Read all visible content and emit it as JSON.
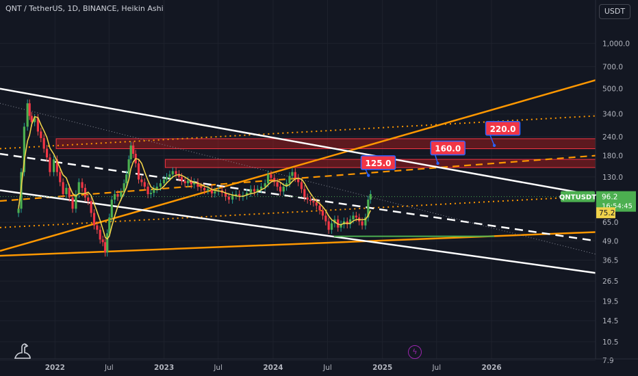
{
  "header": {
    "title": "QNT / TetherUS, 1D, BINANCE, Heikin Ashi",
    "currency": "USDT"
  },
  "colors": {
    "background": "#131722",
    "orange": "#ff9800",
    "white": "#ffffff",
    "red_zone": "#b71c1c",
    "green": "#4caf50",
    "yellow_ma": "#f0d24a",
    "label_red": "#f23645",
    "label_border": "#2962ff"
  },
  "icons": {
    "logo": "tradingview-dinosaur-icon",
    "bolt": "lightning-icon"
  },
  "chart_data": {
    "type": "candlestick",
    "symbol": "QNTUSDT",
    "price_scale": "log",
    "y_ticks": [
      "1,000.0",
      "700.0",
      "500.0",
      "340.0",
      "240.0",
      "180.0",
      "130.0",
      "96.2",
      "65.0",
      "49.0",
      "36.5",
      "26.5",
      "19.5",
      "14.5",
      "10.5",
      "7.9"
    ],
    "x_ticks": [
      "2022",
      "Jul",
      "2023",
      "Jul",
      "2024",
      "Jul",
      "2025",
      "Jul",
      "2026"
    ],
    "last_price": {
      "symbol": "QNTUSDT",
      "value": "96.2",
      "countdown": "16:54:45"
    },
    "ma_marker": "75.2",
    "targets": [
      "125.0",
      "160.0",
      "220.0"
    ],
    "ylim": [
      7.9,
      1400
    ]
  },
  "candles_series": [
    [
      "2021-09-01",
      75,
      80
    ],
    [
      "2021-09-10",
      80,
      140
    ],
    [
      "2021-09-20",
      140,
      280
    ],
    [
      "2021-10-01",
      280,
      400
    ],
    [
      "2021-10-08",
      400,
      330
    ],
    [
      "2021-10-15",
      330,
      300
    ],
    [
      "2021-10-25",
      300,
      320
    ],
    [
      "2021-11-05",
      320,
      260
    ],
    [
      "2021-11-15",
      260,
      235
    ],
    [
      "2021-11-25",
      235,
      200
    ],
    [
      "2021-12-05",
      200,
      175
    ],
    [
      "2021-12-15",
      175,
      140
    ],
    [
      "2021-12-28",
      140,
      170
    ],
    [
      "2022-01-08",
      170,
      140
    ],
    [
      "2022-01-18",
      140,
      120
    ],
    [
      "2022-01-28",
      120,
      100
    ],
    [
      "2022-02-08",
      100,
      110
    ],
    [
      "2022-02-18",
      110,
      95
    ],
    [
      "2022-03-01",
      95,
      80
    ],
    [
      "2022-03-12",
      80,
      100
    ],
    [
      "2022-03-22",
      100,
      120
    ],
    [
      "2022-04-02",
      120,
      110
    ],
    [
      "2022-04-12",
      110,
      95
    ],
    [
      "2022-04-22",
      95,
      90
    ],
    [
      "2022-05-02",
      90,
      75
    ],
    [
      "2022-05-12",
      75,
      62
    ],
    [
      "2022-05-22",
      62,
      58
    ],
    [
      "2022-06-01",
      58,
      50
    ],
    [
      "2022-06-10",
      50,
      48
    ],
    [
      "2022-06-18",
      48,
      41
    ],
    [
      "2022-06-25",
      41,
      55
    ],
    [
      "2022-07-02",
      55,
      70
    ],
    [
      "2022-07-10",
      70,
      92
    ],
    [
      "2022-07-20",
      92,
      100
    ],
    [
      "2022-07-30",
      100,
      96
    ],
    [
      "2022-08-10",
      96,
      103
    ],
    [
      "2022-08-20",
      103,
      118
    ],
    [
      "2022-08-28",
      118,
      135
    ],
    [
      "2022-09-05",
      135,
      170
    ],
    [
      "2022-09-12",
      170,
      210
    ],
    [
      "2022-09-20",
      210,
      185
    ],
    [
      "2022-09-28",
      185,
      160
    ],
    [
      "2022-10-08",
      160,
      125
    ],
    [
      "2022-10-18",
      125,
      120
    ],
    [
      "2022-10-28",
      120,
      112
    ],
    [
      "2022-11-08",
      112,
      100
    ],
    [
      "2022-11-18",
      100,
      102
    ],
    [
      "2022-11-28",
      102,
      108
    ],
    [
      "2022-12-08",
      108,
      112
    ],
    [
      "2022-12-20",
      112,
      118
    ],
    [
      "2023-01-01",
      118,
      125
    ],
    [
      "2023-01-10",
      125,
      130
    ],
    [
      "2023-01-20",
      130,
      135
    ],
    [
      "2023-01-30",
      135,
      142
    ],
    [
      "2023-02-10",
      142,
      136
    ],
    [
      "2023-02-20",
      136,
      130
    ],
    [
      "2023-03-01",
      130,
      122
    ],
    [
      "2023-03-12",
      122,
      118
    ],
    [
      "2023-03-22",
      118,
      123
    ],
    [
      "2023-04-02",
      123,
      116
    ],
    [
      "2023-04-12",
      116,
      120
    ],
    [
      "2023-04-24",
      120,
      112
    ],
    [
      "2023-05-05",
      112,
      110
    ],
    [
      "2023-05-16",
      110,
      106
    ],
    [
      "2023-05-28",
      106,
      108
    ],
    [
      "2023-06-10",
      108,
      101
    ],
    [
      "2023-06-20",
      101,
      104
    ],
    [
      "2023-07-02",
      104,
      106
    ],
    [
      "2023-07-14",
      106,
      102
    ],
    [
      "2023-07-26",
      102,
      96
    ],
    [
      "2023-08-06",
      96,
      92
    ],
    [
      "2023-08-18",
      92,
      98
    ],
    [
      "2023-08-30",
      98,
      100
    ],
    [
      "2023-09-10",
      100,
      96
    ],
    [
      "2023-09-22",
      96,
      98
    ],
    [
      "2023-10-05",
      98,
      102
    ],
    [
      "2023-10-18",
      102,
      108
    ],
    [
      "2023-10-30",
      108,
      104
    ],
    [
      "2023-11-10",
      104,
      108
    ],
    [
      "2023-11-22",
      108,
      112
    ],
    [
      "2023-12-05",
      112,
      118
    ],
    [
      "2023-12-15",
      118,
      135
    ],
    [
      "2023-12-25",
      135,
      128
    ],
    [
      "2024-01-05",
      128,
      120
    ],
    [
      "2024-01-15",
      120,
      112
    ],
    [
      "2024-01-25",
      112,
      104
    ],
    [
      "2024-02-05",
      104,
      112
    ],
    [
      "2024-02-15",
      112,
      118
    ],
    [
      "2024-02-25",
      118,
      132
    ],
    [
      "2024-03-05",
      132,
      140
    ],
    [
      "2024-03-15",
      140,
      128
    ],
    [
      "2024-03-25",
      128,
      120
    ],
    [
      "2024-04-05",
      120,
      108
    ],
    [
      "2024-04-15",
      108,
      95
    ],
    [
      "2024-04-25",
      95,
      92
    ],
    [
      "2024-05-05",
      92,
      90
    ],
    [
      "2024-05-15",
      90,
      88
    ],
    [
      "2024-05-25",
      88,
      84
    ],
    [
      "2024-06-05",
      84,
      78
    ],
    [
      "2024-06-15",
      78,
      72
    ],
    [
      "2024-06-25",
      72,
      66
    ],
    [
      "2024-07-05",
      66,
      58
    ],
    [
      "2024-07-15",
      58,
      64
    ],
    [
      "2024-07-25",
      64,
      68
    ],
    [
      "2024-08-05",
      68,
      60
    ],
    [
      "2024-08-15",
      60,
      63
    ],
    [
      "2024-08-25",
      63,
      66
    ],
    [
      "2024-09-05",
      66,
      63
    ],
    [
      "2024-09-15",
      63,
      68
    ],
    [
      "2024-09-25",
      68,
      72
    ],
    [
      "2024-10-05",
      72,
      70
    ],
    [
      "2024-10-15",
      70,
      66
    ],
    [
      "2024-10-25",
      66,
      62
    ],
    [
      "2024-11-05",
      62,
      70
    ],
    [
      "2024-11-14",
      70,
      92
    ],
    [
      "2024-11-22",
      92,
      100
    ]
  ]
}
